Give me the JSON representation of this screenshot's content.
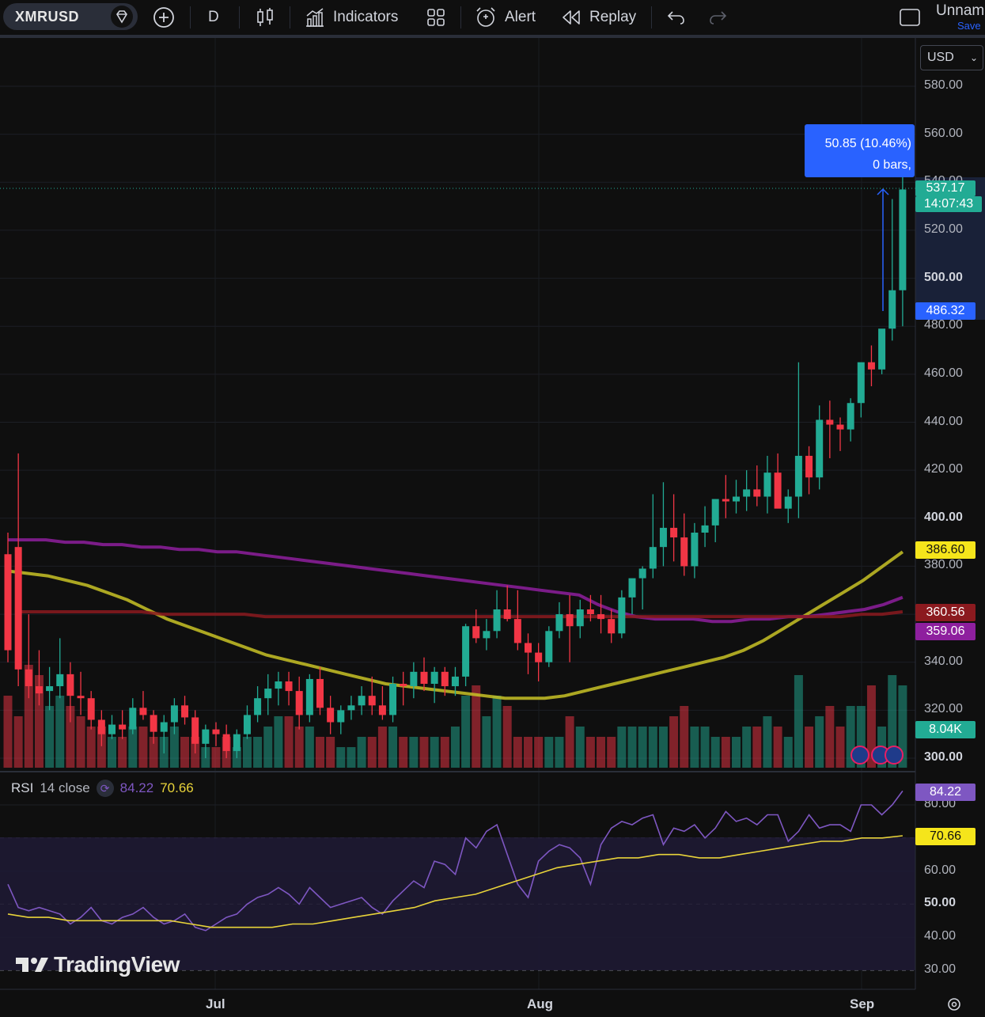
{
  "toolbar": {
    "symbol": "XMRUSD",
    "interval": "D",
    "indicators_label": "Indicators",
    "alert_label": "Alert",
    "replay_label": "Replay",
    "layout_name": "Unnam",
    "save_label": "Save"
  },
  "price_axis": {
    "currency": "USD",
    "ticks": [
      "580.00",
      "560.00",
      "540.00",
      "520.00",
      "500.00",
      "480.00",
      "460.00",
      "440.00",
      "420.00",
      "400.00",
      "380.00",
      "360.00",
      "340.00",
      "320.00",
      "300.00"
    ],
    "bold_ticks": [
      "500.00",
      "400.00",
      "300.00"
    ]
  },
  "labels": {
    "last_price": "537.17",
    "countdown": "14:07:43",
    "measure_start": "486.32",
    "ma_1": "386.60",
    "ma_2": "360.56",
    "ma_3": "359.06",
    "volume": "8.04K",
    "rsi_value": "84.22",
    "rsi_ma": "70.66"
  },
  "measure": {
    "line1": "50.85 (10.46%)",
    "line2": "0 bars,"
  },
  "rsi": {
    "legend_name": "RSI",
    "legend_params": "14 close",
    "ticks": [
      "80.00",
      "60.00",
      "50.00",
      "40.00",
      "30.00"
    ],
    "bold_ticks": [
      "50.00"
    ]
  },
  "x_axis": {
    "labels": [
      "Jul",
      "Aug",
      "Sep"
    ]
  },
  "watermark": "TradingView",
  "colors": {
    "up": "#22ab94",
    "down": "#f23645",
    "ma_fast": "#c8c226",
    "ma_mid": "#8e1f9e",
    "ma_slow": "#8b1a1f",
    "rsi": "#7e57c2",
    "rsi_ma": "#e8d33a",
    "accent": "#2962ff"
  },
  "chart_data": [
    {
      "type": "candlestick",
      "title": "XMRUSD",
      "interval": "1D",
      "ylim": [
        300,
        580
      ],
      "x_labels": [
        "Jul",
        "Aug",
        "Sep"
      ],
      "ohlc": [
        [
          385,
          394,
          340,
          345
        ],
        [
          388,
          427,
          330,
          337
        ],
        [
          337,
          360,
          325,
          330
        ],
        [
          330,
          345,
          322,
          327
        ],
        [
          328,
          338,
          320,
          330
        ],
        [
          330,
          350,
          325,
          335
        ],
        [
          335,
          340,
          315,
          326
        ],
        [
          326,
          336,
          318,
          325
        ],
        [
          325,
          328,
          312,
          316
        ],
        [
          316,
          320,
          305,
          310
        ],
        [
          310,
          318,
          308,
          314
        ],
        [
          314,
          320,
          308,
          312
        ],
        [
          312,
          325,
          310,
          321
        ],
        [
          321,
          328,
          316,
          318
        ],
        [
          318,
          320,
          306,
          311
        ],
        [
          311,
          318,
          302,
          315
        ],
        [
          315,
          325,
          310,
          322
        ],
        [
          322,
          326,
          314,
          317
        ],
        [
          317,
          320,
          302,
          306
        ],
        [
          306,
          314,
          300,
          312
        ],
        [
          312,
          315,
          305,
          310
        ],
        [
          310,
          314,
          300,
          303
        ],
        [
          303,
          312,
          300,
          310
        ],
        [
          310,
          322,
          308,
          318
        ],
        [
          318,
          330,
          315,
          325
        ],
        [
          325,
          335,
          318,
          329
        ],
        [
          329,
          336,
          322,
          332
        ],
        [
          332,
          336,
          322,
          328
        ],
        [
          328,
          334,
          312,
          318
        ],
        [
          318,
          335,
          315,
          333
        ],
        [
          333,
          338,
          318,
          321
        ],
        [
          321,
          326,
          310,
          315
        ],
        [
          315,
          322,
          310,
          320
        ],
        [
          320,
          326,
          316,
          322
        ],
        [
          322,
          330,
          318,
          326
        ],
        [
          326,
          334,
          318,
          322
        ],
        [
          322,
          330,
          316,
          318
        ],
        [
          318,
          334,
          315,
          331
        ],
        [
          331,
          336,
          322,
          330
        ],
        [
          330,
          340,
          325,
          336
        ],
        [
          336,
          342,
          328,
          331
        ],
        [
          331,
          338,
          323,
          336
        ],
        [
          336,
          338,
          326,
          330
        ],
        [
          330,
          338,
          326,
          334
        ],
        [
          334,
          356,
          330,
          355
        ],
        [
          355,
          362,
          348,
          350
        ],
        [
          350,
          358,
          345,
          353
        ],
        [
          353,
          370,
          350,
          362
        ],
        [
          362,
          372,
          357,
          358
        ],
        [
          358,
          370,
          345,
          348
        ],
        [
          348,
          352,
          335,
          344
        ],
        [
          344,
          348,
          332,
          340
        ],
        [
          340,
          355,
          338,
          353
        ],
        [
          353,
          365,
          350,
          360
        ],
        [
          360,
          368,
          340,
          355
        ],
        [
          355,
          366,
          350,
          362
        ],
        [
          362,
          368,
          357,
          360
        ],
        [
          360,
          368,
          352,
          358
        ],
        [
          358,
          362,
          348,
          352
        ],
        [
          352,
          370,
          350,
          367
        ],
        [
          367,
          374,
          360,
          375
        ],
        [
          375,
          380,
          362,
          379
        ],
        [
          379,
          410,
          375,
          388
        ],
        [
          388,
          415,
          380,
          396
        ],
        [
          396,
          410,
          382,
          392
        ],
        [
          392,
          402,
          376,
          380
        ],
        [
          380,
          398,
          375,
          394
        ],
        [
          394,
          405,
          388,
          397
        ],
        [
          397,
          408,
          390,
          408
        ],
        [
          408,
          418,
          400,
          407
        ],
        [
          407,
          416,
          402,
          409
        ],
        [
          409,
          420,
          403,
          412
        ],
        [
          412,
          422,
          405,
          409
        ],
        [
          409,
          426,
          402,
          419
        ],
        [
          419,
          427,
          405,
          404
        ],
        [
          404,
          412,
          398,
          409
        ],
        [
          409,
          465,
          400,
          426
        ],
        [
          426,
          430,
          410,
          417
        ],
        [
          417,
          447,
          412,
          441
        ],
        [
          441,
          449,
          425,
          439
        ],
        [
          439,
          442,
          428,
          437
        ],
        [
          437,
          450,
          432,
          448
        ],
        [
          448,
          464,
          442,
          465
        ],
        [
          465,
          472,
          455,
          462
        ],
        [
          462,
          478,
          460,
          479
        ],
        [
          479,
          533,
          474,
          495
        ],
        [
          495,
          543,
          480,
          537
        ]
      ]
    },
    {
      "type": "line",
      "title": "Moving averages",
      "series": [
        {
          "values": [
            378,
            377,
            376,
            374,
            372,
            369,
            366,
            362,
            358,
            355,
            352,
            349,
            346,
            343,
            341,
            339,
            337,
            335,
            333,
            331,
            330,
            329,
            328,
            327,
            326,
            325,
            325,
            325,
            326,
            328,
            330,
            332,
            334,
            336,
            338,
            340,
            342,
            345,
            349,
            354,
            359,
            364,
            369,
            374,
            380,
            386
          ]
        },
        {
          "values": [
            391,
            391,
            391,
            390,
            390,
            389,
            389,
            388,
            388,
            387,
            387,
            386,
            386,
            385,
            384,
            383,
            382,
            381,
            380,
            379,
            378,
            377,
            376,
            375,
            374,
            373,
            372,
            371,
            370,
            369,
            368,
            364,
            361,
            359,
            358,
            358,
            358,
            357,
            357,
            358,
            358,
            359,
            359,
            360,
            361,
            362,
            364,
            367
          ]
        },
        {
          "values": [
            361,
            361,
            361,
            361,
            361,
            361,
            361,
            360,
            360,
            360,
            360,
            360,
            359,
            359,
            359,
            359,
            359,
            359,
            359,
            359,
            359,
            359,
            359,
            359,
            359,
            359,
            359,
            359,
            359,
            359,
            359,
            359,
            359,
            359,
            359,
            359,
            359,
            359,
            359,
            359,
            359,
            360,
            360,
            361
          ]
        }
      ]
    },
    {
      "type": "bar",
      "title": "Volume",
      "values": [
        7,
        5,
        10,
        9,
        6,
        7,
        6,
        5,
        4,
        4,
        3,
        3,
        4,
        4,
        3,
        3,
        4,
        3,
        3,
        2,
        2,
        3,
        2,
        3,
        3,
        4,
        5,
        5,
        4,
        4,
        3,
        3,
        2,
        2,
        3,
        3,
        4,
        4,
        3,
        3,
        3,
        3,
        3,
        4,
        7,
        8,
        5,
        7,
        6,
        3,
        3,
        3,
        3,
        3,
        5,
        4,
        3,
        3,
        3,
        4,
        4,
        4,
        4,
        4,
        5,
        6,
        4,
        4,
        3,
        3,
        3,
        4,
        4,
        5,
        4,
        3,
        9,
        4,
        5,
        6,
        4,
        6,
        6,
        8,
        4,
        9,
        8
      ]
    },
    {
      "type": "line",
      "title": "RSI 14 close",
      "ylim": [
        30,
        85
      ],
      "series": [
        {
          "name": "RSI",
          "values": [
            56,
            49,
            48,
            49,
            48,
            47,
            44,
            46,
            49,
            45,
            44,
            46,
            47,
            49,
            46,
            44,
            45,
            47,
            43,
            42,
            44,
            46,
            47,
            50,
            52,
            53,
            55,
            53,
            50,
            55,
            52,
            49,
            50,
            51,
            52,
            49,
            47,
            51,
            54,
            57,
            55,
            63,
            62,
            59,
            70,
            67,
            72,
            74,
            65,
            56,
            52,
            63,
            66,
            68,
            67,
            64,
            56,
            68,
            73,
            75,
            74,
            76,
            77,
            68,
            73,
            72,
            74,
            70,
            73,
            78,
            75,
            76,
            74,
            77,
            77,
            69,
            72,
            77,
            73,
            74,
            74,
            72,
            80,
            80,
            77,
            80,
            84.22
          ]
        },
        {
          "name": "RSI MA",
          "values": [
            47,
            46,
            46,
            45,
            45,
            45,
            45,
            45,
            45,
            44,
            43,
            43,
            43,
            43,
            44,
            44,
            45,
            46,
            47,
            48,
            49,
            51,
            52,
            53,
            55,
            57,
            59,
            61,
            62,
            63,
            64,
            64,
            65,
            65,
            64,
            64,
            65,
            66,
            67,
            68,
            69,
            69,
            70,
            70,
            70.66
          ]
        }
      ]
    }
  ]
}
